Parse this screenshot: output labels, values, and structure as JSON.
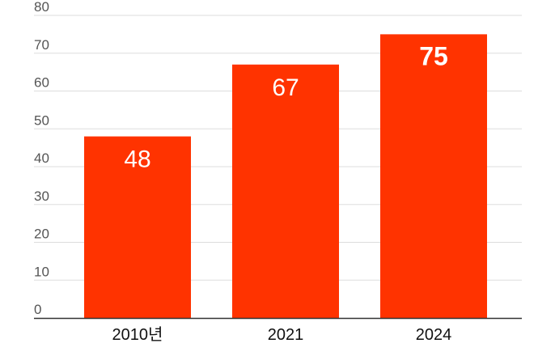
{
  "chart_data": {
    "type": "bar",
    "categories": [
      "2010년",
      "2021",
      "2024"
    ],
    "values": [
      48,
      67,
      75
    ],
    "data_labels": [
      "48",
      "67",
      "75"
    ],
    "highlight_index": 2,
    "ylim": [
      0,
      80
    ],
    "yticks": [
      0,
      10,
      20,
      30,
      40,
      50,
      60,
      70,
      80
    ],
    "grid": true,
    "bar_color": "#ff3300",
    "grid_color": "#dddddd",
    "axis_color": "#333333"
  }
}
